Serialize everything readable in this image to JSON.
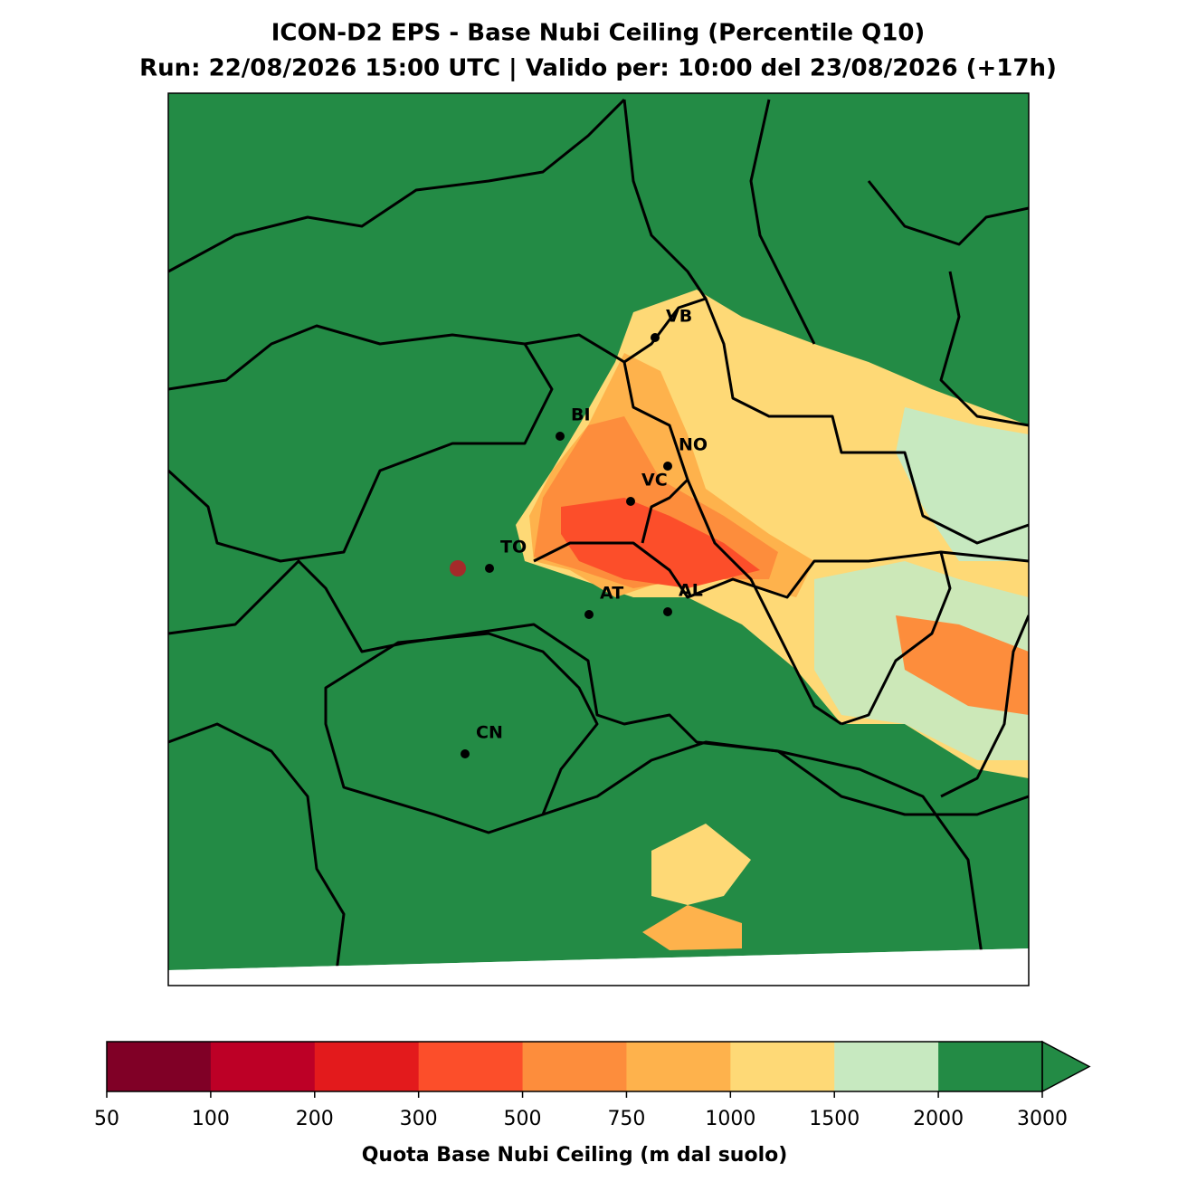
{
  "title": "ICON-D2 EPS - Base Nubi Ceiling (Percentile Q10)",
  "subtitle": "Run: 22/08/2026 15:00 UTC | Valido per: 10:00 del 23/08/2026 (+17h)",
  "cities": [
    {
      "label": "VB"
    },
    {
      "label": "BI"
    },
    {
      "label": "NO"
    },
    {
      "label": "VC"
    },
    {
      "label": "TO"
    },
    {
      "label": "AT"
    },
    {
      "label": "AL"
    },
    {
      "label": "CN"
    }
  ],
  "colorbar": {
    "label": "Quota Base Nubi Ceiling (m dal suolo)",
    "levels": [
      50,
      100,
      200,
      300,
      500,
      750,
      1000,
      1500,
      2000,
      3000
    ],
    "colors": [
      "#800026",
      "#bd0026",
      "#e31a1c",
      "#fc4e2a",
      "#fd8d3c",
      "#feb24c",
      "#fed976",
      "#c7e9c0",
      "#238b45"
    ]
  }
}
